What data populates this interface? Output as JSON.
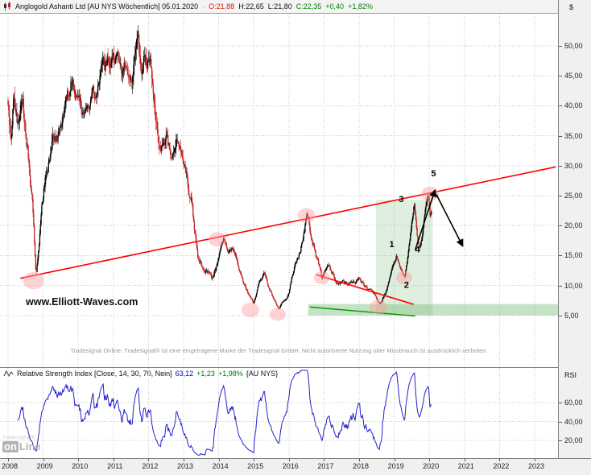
{
  "header": {
    "icon": "candlestick-chart-icon",
    "title": "Anglogold Ashanti Ltd [AU NYS  Wöchentlich] 05.01.2020",
    "sep": "·",
    "open": "O:21,88",
    "high": "H:22,65",
    "low": "L:21,80",
    "close": "C:22,35",
    "change": "+0,40",
    "change_pct": "+1,82%"
  },
  "price_axis": {
    "unit": "$",
    "ticks": [
      {
        "label": "50,00",
        "value": 50
      },
      {
        "label": "45,00",
        "value": 45
      },
      {
        "label": "40,00",
        "value": 40
      },
      {
        "label": "35,00",
        "value": 35
      },
      {
        "label": "30,00",
        "value": 30
      },
      {
        "label": "25,00",
        "value": 25
      },
      {
        "label": "20,00",
        "value": 20
      },
      {
        "label": "15,00",
        "value": 15
      },
      {
        "label": "10,00",
        "value": 10
      },
      {
        "label": "5,00",
        "value": 5
      }
    ]
  },
  "time_axis": {
    "years": [
      "2008",
      "2009",
      "2010",
      "2011",
      "2012",
      "2013",
      "2014",
      "2015",
      "2016",
      "2017",
      "2018",
      "2019",
      "2020",
      "2021",
      "2022",
      "2023"
    ]
  },
  "rsi": {
    "icon": "wave-icon",
    "label": "Relative Strength Index [Close, 14, 30, 70, Nein]",
    "value": "63,12",
    "change": "+1,23",
    "change_pct": "+1,98%",
    "symbol": "{AU NYS}",
    "axis_label": "RSI",
    "ticks": [
      {
        "label": "60,00",
        "value": 60
      },
      {
        "label": "40,00",
        "value": 40
      },
      {
        "label": "20,00",
        "value": 20
      }
    ]
  },
  "watermark": "www.Elliott-Waves.com",
  "disclaimer": "Tradesignal Online. Tradesignal® ist eine eingetragene Marke der Tradesignal GmbH. Nicht autorisierte Nutzung oder Missbrauch ist ausdrücklich verboten.",
  "logo": {
    "top": "tradesignal®",
    "on": "on",
    "line": "Line"
  },
  "chart_data": {
    "type": "candlestick",
    "instrument": "Anglogold Ashanti Ltd [AU NYS]",
    "interval": "weekly",
    "x_range": [
      2008,
      2023.8
    ],
    "price_range_visible": [
      1.5,
      55
    ],
    "price_gridlines": [
      5,
      10,
      15,
      20,
      25,
      30,
      35,
      40,
      45,
      50
    ],
    "last": {
      "open": 21.88,
      "high": 22.65,
      "low": 21.8,
      "close": 22.35
    },
    "price_anchors": [
      [
        2008.0,
        41
      ],
      [
        2008.08,
        35
      ],
      [
        2008.17,
        43
      ],
      [
        2008.3,
        37
      ],
      [
        2008.42,
        40
      ],
      [
        2008.55,
        33
      ],
      [
        2008.7,
        23
      ],
      [
        2008.8,
        12
      ],
      [
        2008.88,
        17
      ],
      [
        2008.96,
        25
      ],
      [
        2009.1,
        30
      ],
      [
        2009.3,
        34
      ],
      [
        2009.5,
        36
      ],
      [
        2009.65,
        41
      ],
      [
        2009.85,
        44
      ],
      [
        2010.0,
        40
      ],
      [
        2010.15,
        38.5
      ],
      [
        2010.35,
        41
      ],
      [
        2010.55,
        43
      ],
      [
        2010.75,
        46
      ],
      [
        2010.95,
        49
      ],
      [
        2011.1,
        47
      ],
      [
        2011.25,
        43
      ],
      [
        2011.4,
        46
      ],
      [
        2011.55,
        43
      ],
      [
        2011.7,
        52
      ],
      [
        2011.8,
        45
      ],
      [
        2011.92,
        47.5
      ],
      [
        2012.05,
        48
      ],
      [
        2012.2,
        40
      ],
      [
        2012.35,
        34
      ],
      [
        2012.5,
        35.5
      ],
      [
        2012.65,
        31
      ],
      [
        2012.8,
        34
      ],
      [
        2012.95,
        31
      ],
      [
        2013.1,
        27
      ],
      [
        2013.25,
        23
      ],
      [
        2013.4,
        14.5
      ],
      [
        2013.55,
        13
      ],
      [
        2013.7,
        12
      ],
      [
        2013.85,
        11.5
      ],
      [
        2014.0,
        15
      ],
      [
        2014.15,
        17.8
      ],
      [
        2014.3,
        16
      ],
      [
        2014.45,
        15.5
      ],
      [
        2014.6,
        13
      ],
      [
        2014.75,
        10
      ],
      [
        2014.88,
        8
      ],
      [
        2015.0,
        7
      ],
      [
        2015.15,
        10
      ],
      [
        2015.3,
        11.5
      ],
      [
        2015.45,
        9
      ],
      [
        2015.6,
        7
      ],
      [
        2015.7,
        5.8
      ],
      [
        2015.85,
        7.5
      ],
      [
        2016.0,
        8.5
      ],
      [
        2016.15,
        13
      ],
      [
        2016.3,
        15.5
      ],
      [
        2016.42,
        18
      ],
      [
        2016.52,
        21.8
      ],
      [
        2016.65,
        18
      ],
      [
        2016.8,
        14.5
      ],
      [
        2016.94,
        11.2
      ],
      [
        2017.1,
        13
      ],
      [
        2017.25,
        12
      ],
      [
        2017.4,
        10.2
      ],
      [
        2017.55,
        10.8
      ],
      [
        2017.7,
        10
      ],
      [
        2017.85,
        10.5
      ],
      [
        2018.0,
        11.2
      ],
      [
        2018.15,
        10
      ],
      [
        2018.3,
        9.2
      ],
      [
        2018.45,
        8.2
      ],
      [
        2018.58,
        7.2
      ],
      [
        2018.75,
        8.8
      ],
      [
        2018.9,
        12
      ],
      [
        2019.0,
        13.8
      ],
      [
        2019.06,
        15.0
      ],
      [
        2019.18,
        12.8
      ],
      [
        2019.3,
        11.3
      ],
      [
        2019.42,
        16
      ],
      [
        2019.5,
        20
      ],
      [
        2019.57,
        23.3
      ],
      [
        2019.65,
        18
      ],
      [
        2019.72,
        15.8
      ],
      [
        2019.82,
        19
      ],
      [
        2019.9,
        23
      ],
      [
        2019.97,
        25.6
      ],
      [
        2020.02,
        21.9
      ],
      [
        2020.06,
        22.35
      ]
    ],
    "colors": {
      "up_candle": "#000000",
      "down_candle": "#c22222",
      "trendline": "#ff0000",
      "support_zone": "#7fbf7f",
      "support_line": "#009900",
      "rsi_line": "#2222cc",
      "grid": "#c4c4c4",
      "highlight_circle": "#ff9e9e",
      "projection": "#000000"
    },
    "annotations": {
      "trendline_up": {
        "x1": 2008.35,
        "p1": 11.2,
        "x2": 2023.6,
        "p2": 29.8
      },
      "trendline_down": {
        "x1": 2016.78,
        "p1": 11.8,
        "x2": 2019.55,
        "p2": 6.85
      },
      "support_zone": {
        "x1": 2016.55,
        "x2": 2023.72,
        "p_top": 6.9,
        "p_bottom": 5.0
      },
      "green_box": {
        "x1": 2018.48,
        "x2": 2020.1,
        "p_top": 24.3,
        "p_bottom": 5.0
      },
      "green_trendline": {
        "x1": 2016.6,
        "p1": 6.4,
        "x2": 2019.6,
        "p2": 4.9
      },
      "highlight_circles": [
        {
          "x": 2008.73,
          "p": 10.8,
          "r": 13
        },
        {
          "x": 2013.96,
          "p": 17.7,
          "r": 11
        },
        {
          "x": 2014.9,
          "p": 5.9,
          "r": 11
        },
        {
          "x": 2015.68,
          "p": 5.2,
          "r": 10
        },
        {
          "x": 2016.5,
          "p": 21.7,
          "r": 11
        },
        {
          "x": 2016.94,
          "p": 11.3,
          "r": 10
        },
        {
          "x": 2018.55,
          "p": 6.4,
          "r": 11
        },
        {
          "x": 2019.28,
          "p": 11.3,
          "r": 10
        },
        {
          "x": 2020.02,
          "p": 25.3,
          "r": 11
        }
      ],
      "wave_labels": [
        {
          "text": "1",
          "x": 2018.93,
          "p": 16.4
        },
        {
          "text": "2",
          "x": 2019.35,
          "p": 9.6
        },
        {
          "text": "3",
          "x": 2019.2,
          "p": 23.9
        },
        {
          "text": "4",
          "x": 2019.66,
          "p": 15.5
        },
        {
          "text": "5",
          "x": 2020.12,
          "p": 28.2
        }
      ],
      "projection_lines": [
        {
          "x1": 2019.6,
          "p1": 16.0,
          "x2": 2020.16,
          "p2": 25.9
        },
        {
          "x1": 2020.2,
          "p1": 25.2,
          "x2": 2020.95,
          "p2": 16.6
        }
      ]
    },
    "rsi_chart": {
      "type": "line",
      "period": 14,
      "bands": [
        30,
        70
      ],
      "gridlines": [
        60,
        40,
        20
      ],
      "last_value": 63.12,
      "range_visible": [
        15,
        97
      ]
    }
  }
}
